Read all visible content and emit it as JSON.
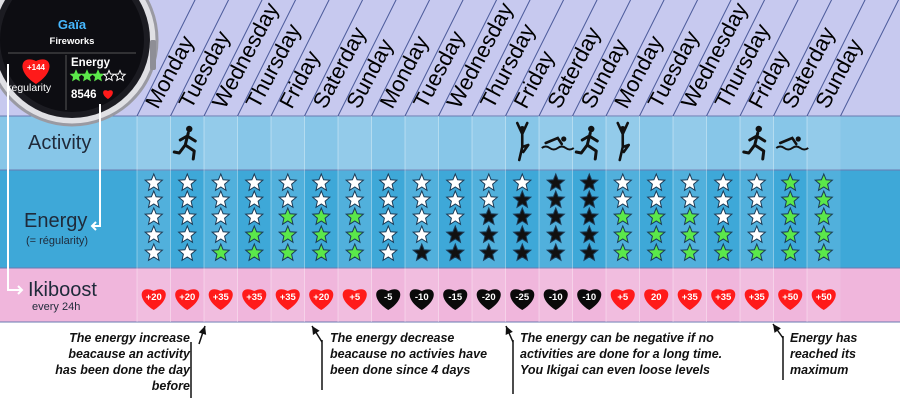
{
  "watch": {
    "title": "Gaïa",
    "subtitle": "Fireworks",
    "badge": "+144",
    "regularity_label": "regularity",
    "energy_label": "Energy",
    "energy_value": "8546",
    "energy_stars": 3,
    "energy_stars_total": 5
  },
  "days": [
    "Monday",
    "Tuesday",
    "Wednesday",
    "Thursday",
    "Friday",
    "Saterday",
    "Sunday",
    "Monday",
    "Tuesday",
    "Wednesday",
    "Thursday",
    "Friday",
    "Saterday",
    "Sunday",
    "Monday",
    "Tuesday",
    "Wednesday",
    "Thursday",
    "Friday",
    "Saterday",
    "Sunday"
  ],
  "rows": {
    "activity": {
      "label": "Activity"
    },
    "energy": {
      "label": "Energy",
      "sublabel": "(= régularity)"
    },
    "ikiboost": {
      "label": "Ikiboost",
      "sublabel": "every 24h"
    }
  },
  "activities": [
    "",
    "",
    "",
    "",
    "",
    "",
    "",
    "",
    "",
    "",
    "",
    "",
    "",
    "",
    "",
    "",
    "",
    "",
    "",
    "",
    ""
  ],
  "activity_icons": [
    "none",
    "run",
    "none",
    "none",
    "none",
    "none",
    "none",
    "none",
    "none",
    "none",
    "none",
    "yoga",
    "swim",
    "run",
    "yoga",
    "none",
    "none",
    "none",
    "run",
    "swim",
    "none"
  ],
  "energy_levels": [
    0,
    0,
    1,
    2,
    3,
    3,
    3,
    0,
    -1,
    -2,
    -3,
    -4,
    -5,
    -5,
    3,
    3,
    3,
    2,
    1,
    5,
    5
  ],
  "ikiboost": [
    "+20",
    "+20",
    "+35",
    "+35",
    "+35",
    "+20",
    "+5",
    "-5",
    "-10",
    "-15",
    "-20",
    "-25",
    "-10",
    "-10",
    "+5",
    "20",
    "+35",
    "+35",
    "+35",
    "+50",
    "+50"
  ],
  "notes": [
    "The energy increase beacause an activity has been done the day before",
    "The energy decrease beacause no activies have been done since 4 days",
    "The energy can be negative if no activities are done for a long time. You Ikigai can even loose levels",
    "Energy has reached its maximum"
  ],
  "colors": {
    "header_bg": "#c7c9ef",
    "activity_bg": "#87c6e8",
    "energy_bg": "#3ea8d8",
    "ikiboost_bg": "#f0b6dc",
    "star_green": "#5be84a",
    "heart_red": "#ff1a1a",
    "heart_black": "#0a0a0a"
  }
}
